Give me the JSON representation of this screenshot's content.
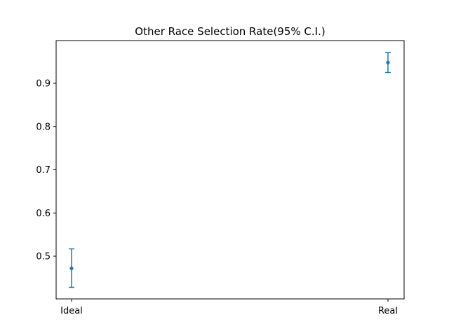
{
  "chart_data": {
    "type": "scatter",
    "title": "Other Race Selection Rate(95% C.I.)",
    "xlabel": "",
    "ylabel": "",
    "categories": [
      "Ideal",
      "Real"
    ],
    "series": [
      {
        "values": [
          0.472,
          0.948
        ],
        "ci_low": [
          0.428,
          0.925
        ],
        "ci_high": [
          0.517,
          0.971
        ],
        "color": "#1f77b4"
      }
    ],
    "ylim": [
      0.4,
      1.0
    ],
    "yticks": [
      "0.5",
      "0.6",
      "0.7",
      "0.8",
      "0.9"
    ],
    "grid": false,
    "legend": "none"
  }
}
